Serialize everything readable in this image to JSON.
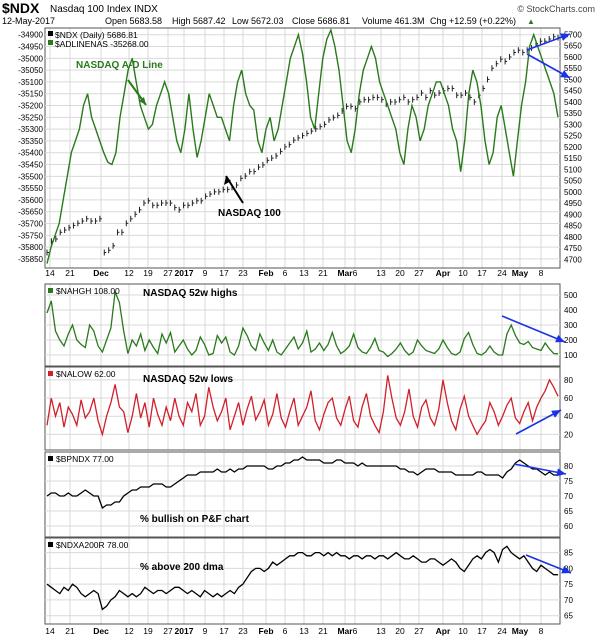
{
  "header": {
    "symbol": "$NDX",
    "name": "Nasdaq 100 Index INDX",
    "credit": "© StockCharts.com",
    "date": "12-May-2017",
    "open": "Open 5683.58",
    "high": "High 5687.42",
    "low": "Low 5672.03",
    "close": "Close 5686.81",
    "volume": "Volume 461.3M",
    "chg": "Chg +12.59 (+0.22%)",
    "chg_arrow": "▲"
  },
  "colors": {
    "green": "#2a7a1c",
    "red": "#d0202a",
    "black": "#000000",
    "blue": "#1a33e6",
    "grid": "#d9d9d9",
    "frame": "#555555"
  },
  "chart_data": [
    {
      "type": "line",
      "legend": [
        "$NDX (Daily) 5686.81",
        "$ADLINENAS -35268.00"
      ],
      "x_labels": [
        "14",
        "21",
        "Dec",
        "12",
        "19",
        "27",
        "2017",
        "9",
        "17",
        "23",
        "Feb",
        "6",
        "13",
        "21",
        "Mar",
        "6",
        "13",
        "20",
        "27",
        "Apr",
        "10",
        "17",
        "24",
        "May",
        "8"
      ],
      "y_left_ticks": [
        "-34900",
        "-34950",
        "-35000",
        "-35050",
        "-35100",
        "-35150",
        "-35200",
        "-35250",
        "-35300",
        "-35350",
        "-35400",
        "-35450",
        "-35500",
        "-35550",
        "-35600",
        "-35650",
        "-35700",
        "-35750",
        "-35800",
        "-35850"
      ],
      "y_right_ticks": [
        "5700",
        "5650",
        "5600",
        "5550",
        "5500",
        "5450",
        "5400",
        "5350",
        "5300",
        "5250",
        "5200",
        "5150",
        "5100",
        "5050",
        "5000",
        "4950",
        "4900",
        "4850",
        "4800",
        "4750",
        "4700"
      ],
      "ylim_left": [
        -35880,
        -34880
      ],
      "ylim_right": [
        4670,
        5720
      ],
      "annotations": [
        "NASDAQ A-D Line",
        "NASDAQ 100"
      ],
      "series": [
        {
          "name": "$ADLINENAS",
          "axis": "left",
          "values": [
            -35870,
            -35800,
            -35750,
            -35700,
            -35600,
            -35500,
            -35400,
            -35350,
            -35300,
            -35200,
            -35150,
            -35250,
            -35300,
            -35350,
            -35400,
            -35440,
            -35450,
            -35400,
            -35250,
            -35150,
            -35050,
            -35000,
            -35100,
            -35200,
            -35250,
            -35300,
            -35280,
            -35200,
            -35150,
            -35100,
            -35150,
            -35250,
            -35350,
            -35400,
            -35300,
            -35150,
            -35300,
            -35420,
            -35350,
            -35250,
            -35150,
            -35200,
            -35250,
            -35250,
            -35300,
            -35350,
            -35200,
            -35100,
            -35050,
            -35150,
            -35200,
            -35220,
            -35350,
            -35400,
            -35300,
            -35250,
            -35350,
            -35300,
            -35200,
            -35100,
            -35000,
            -34950,
            -34900,
            -34980,
            -35100,
            -35250,
            -35300,
            -35150,
            -35000,
            -34920,
            -34880,
            -34950,
            -35050,
            -35200,
            -35350,
            -35400,
            -35300,
            -35150,
            -35050,
            -35000,
            -34950,
            -35000,
            -35100,
            -35150,
            -35200,
            -35250,
            -35300,
            -35400,
            -35450,
            -35300,
            -35200,
            -35250,
            -35350,
            -35300,
            -35200,
            -35150,
            -35100,
            -35100,
            -35150,
            -35200,
            -35300,
            -35350,
            -35480,
            -35350,
            -35150,
            -35050,
            -35100,
            -35200,
            -35350,
            -35450,
            -35400,
            -35250,
            -35200,
            -35300,
            -35400,
            -35500,
            -35350,
            -35200,
            -35100,
            -34950,
            -34900,
            -34950,
            -35000,
            -35050,
            -35100,
            -35150,
            -35250
          ]
        },
        {
          "name": "$NDX",
          "axis": "right",
          "values": [
            4730,
            4780,
            4790,
            4820,
            4830,
            4840,
            4850,
            4860,
            4870,
            4880,
            4870,
            4870,
            4880,
            4730,
            4740,
            4760,
            4820,
            4820,
            4860,
            4880,
            4900,
            4920,
            4950,
            4960,
            4940,
            4940,
            4950,
            4950,
            4950,
            4930,
            4920,
            4940,
            4940,
            4950,
            4960,
            4960,
            4980,
            4990,
            5000,
            5000,
            5010,
            5010,
            5020,
            5030,
            5060,
            5070,
            5090,
            5090,
            5110,
            5120,
            5140,
            5150,
            5160,
            5180,
            5200,
            5210,
            5230,
            5240,
            5250,
            5260,
            5270,
            5280,
            5290,
            5300,
            5320,
            5330,
            5340,
            5360,
            5380,
            5380,
            5370,
            5400,
            5410,
            5410,
            5420,
            5420,
            5410,
            5390,
            5400,
            5400,
            5410,
            5420,
            5400,
            5410,
            5420,
            5440,
            5420,
            5450,
            5430,
            5440,
            5450,
            5460,
            5460,
            5430,
            5430,
            5440,
            5420,
            5400,
            5430,
            5460,
            5500,
            5550,
            5570,
            5590,
            5580,
            5600,
            5620,
            5630,
            5620,
            5630,
            5640,
            5660,
            5670,
            5670,
            5680,
            5690,
            5686
          ]
        }
      ]
    },
    {
      "type": "line",
      "legend": "$NAHGH 108.00",
      "label": "NASDAQ 52w highs",
      "y_ticks": [
        "500",
        "400",
        "300",
        "200",
        "100"
      ],
      "ylim": [
        40,
        560
      ],
      "series": [
        {
          "name": "$NAHGH",
          "values": [
            380,
            460,
            260,
            200,
            160,
            240,
            300,
            200,
            170,
            150,
            300,
            260,
            160,
            120,
            200,
            280,
            520,
            450,
            260,
            110,
            200,
            160,
            240,
            130,
            200,
            150,
            110,
            240,
            180,
            250,
            120,
            160,
            200,
            140,
            100,
            130,
            220,
            170,
            100,
            110,
            230,
            180,
            220,
            120,
            100,
            160,
            280,
            230,
            160,
            130,
            240,
            180,
            130,
            200,
            120,
            100,
            140,
            180,
            220,
            140,
            180,
            260,
            120,
            140,
            180,
            130,
            170,
            250,
            160,
            110,
            130,
            160,
            240,
            150,
            120,
            110,
            150,
            210,
            130,
            120,
            90,
            110,
            140,
            180,
            130,
            100,
            120,
            200,
            160,
            130,
            120,
            110,
            140,
            200,
            150,
            110,
            100,
            120,
            210,
            250,
            170,
            110,
            100,
            120,
            160,
            120,
            100,
            100,
            240,
            300,
            230,
            180,
            170,
            190,
            150,
            140,
            130,
            180,
            140,
            110,
            108
          ]
        }
      ]
    },
    {
      "type": "line",
      "legend": "$NALOW 62.00",
      "label": "NASDAQ 52w lows",
      "y_ticks": [
        "80",
        "60",
        "40",
        "20"
      ],
      "ylim": [
        5,
        92
      ],
      "series": [
        {
          "name": "$NALOW",
          "values": [
            30,
            60,
            40,
            55,
            28,
            50,
            42,
            30,
            58,
            38,
            45,
            60,
            35,
            20,
            40,
            55,
            75,
            50,
            45,
            22,
            40,
            65,
            38,
            55,
            28,
            60,
            42,
            30,
            50,
            35,
            60,
            40,
            30,
            55,
            45,
            65,
            30,
            40,
            72,
            50,
            35,
            45,
            60,
            25,
            40,
            55,
            30,
            48,
            62,
            36,
            45,
            58,
            30,
            42,
            65,
            38,
            28,
            45,
            60,
            30,
            40,
            50,
            68,
            35,
            25,
            42,
            55,
            60,
            38,
            30,
            48,
            62,
            35,
            28,
            50,
            65,
            40,
            30,
            22,
            45,
            85,
            60,
            38,
            30,
            45,
            70,
            40,
            28,
            50,
            58,
            38,
            30,
            48,
            80,
            55,
            35,
            25,
            48,
            62,
            40,
            30,
            20,
            28,
            35,
            55,
            45,
            30,
            40,
            52,
            60,
            38,
            32,
            45,
            55,
            35,
            50,
            60,
            68,
            80,
            72,
            62
          ]
        }
      ]
    },
    {
      "type": "line",
      "legend": "$BPNDX 77.00",
      "label": "% bullish on P&F chart",
      "y_ticks": [
        "80",
        "75",
        "70",
        "65",
        "60"
      ],
      "ylim": [
        57,
        84
      ],
      "series": [
        {
          "name": "$BPNDX",
          "values": [
            70,
            71,
            71,
            70,
            70,
            71,
            70,
            70,
            71,
            72,
            71,
            70,
            70,
            66,
            67,
            67,
            68,
            68,
            70,
            71,
            72,
            72,
            73,
            73,
            73,
            74,
            74,
            74,
            73,
            73,
            74,
            75,
            76,
            77,
            77,
            77,
            78,
            78,
            78,
            78,
            79,
            78,
            78,
            79,
            78,
            79,
            79,
            80,
            80,
            80,
            80,
            80,
            79,
            79,
            80,
            80,
            81,
            81,
            82,
            82,
            83,
            82,
            82,
            82,
            82,
            81,
            81,
            81,
            82,
            82,
            81,
            81,
            81,
            80,
            81,
            80,
            80,
            80,
            80,
            80,
            80,
            80,
            80,
            79,
            79,
            78,
            78,
            77,
            78,
            79,
            79,
            79,
            78,
            78,
            78,
            78,
            77,
            77,
            77,
            77,
            77,
            78,
            78,
            77,
            77,
            77,
            77,
            76,
            78,
            79,
            81,
            82,
            81,
            80,
            79,
            79,
            78,
            77,
            78,
            77,
            77
          ]
        }
      ]
    },
    {
      "type": "line",
      "legend": "$NDXA200R 78.00",
      "label": "% above 200 dma",
      "y_ticks": [
        "85",
        "80",
        "75",
        "70",
        "65"
      ],
      "ylim": [
        63,
        89
      ],
      "series": [
        {
          "name": "$NDXA200R",
          "values": [
            75,
            74,
            73,
            72,
            74,
            73,
            75,
            74,
            72,
            71,
            72,
            73,
            72,
            67,
            68,
            70,
            71,
            73,
            72,
            71,
            72,
            71,
            72,
            74,
            73,
            72,
            73,
            73,
            72,
            73,
            74,
            74,
            73,
            72,
            73,
            72,
            71,
            73,
            72,
            71,
            72,
            71,
            72,
            73,
            72,
            74,
            75,
            77,
            79,
            80,
            80,
            79,
            80,
            82,
            81,
            82,
            83,
            84,
            84,
            85,
            85,
            84,
            84,
            85,
            85,
            84,
            85,
            84,
            85,
            84,
            84,
            83,
            84,
            84,
            83,
            84,
            84,
            83,
            84,
            84,
            83,
            84,
            85,
            84,
            83,
            83,
            84,
            83,
            82,
            82,
            83,
            83,
            82,
            81,
            82,
            83,
            82,
            80,
            79,
            81,
            83,
            84,
            83,
            85,
            86,
            85,
            82,
            86,
            87,
            85,
            84,
            83,
            84,
            82,
            80,
            79,
            81,
            80,
            79,
            78,
            78
          ]
        }
      ]
    }
  ],
  "x_axis_labels": [
    "14",
    "21",
    "Dec",
    "12",
    "19",
    "27",
    "2017",
    "9",
    "17",
    "23",
    "Feb",
    "6",
    "13",
    "21",
    "Mar",
    "6",
    "13",
    "20",
    "27",
    "Apr",
    "10",
    "17",
    "24",
    "May",
    "8"
  ]
}
